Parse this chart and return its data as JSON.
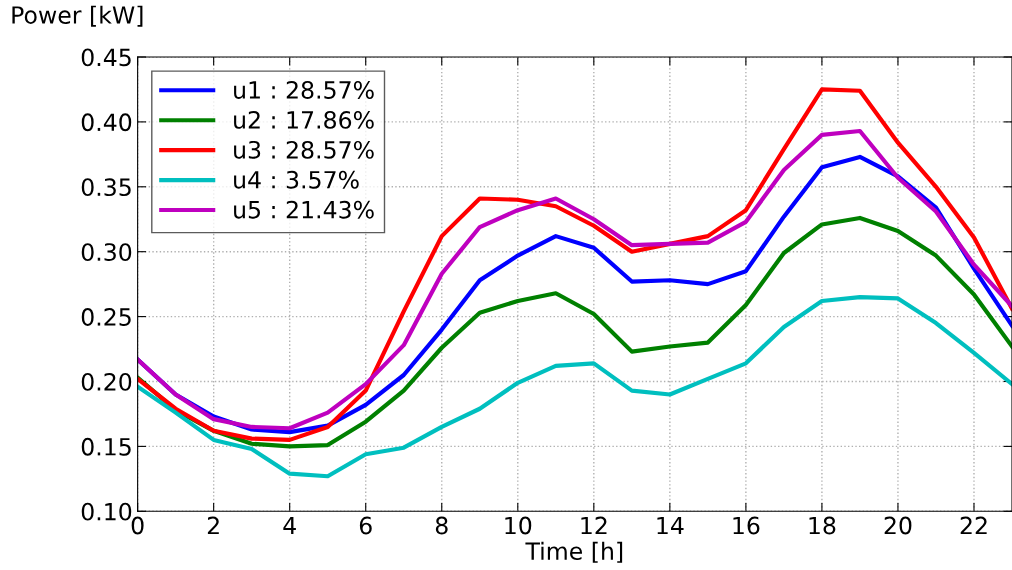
{
  "chart_data": {
    "type": "line",
    "xlabel": "Time [h]",
    "ylabel": "Power [kW]",
    "x": [
      0,
      1,
      2,
      3,
      4,
      5,
      6,
      7,
      8,
      9,
      10,
      11,
      12,
      13,
      14,
      15,
      16,
      17,
      18,
      19,
      20,
      21,
      22,
      23
    ],
    "xlim": [
      0,
      23
    ],
    "xticks": [
      0,
      2,
      4,
      6,
      8,
      10,
      12,
      14,
      16,
      18,
      20,
      22
    ],
    "ylim": [
      0.1,
      0.45
    ],
    "yticks": [
      {
        "value": 0.1,
        "label": "0.10"
      },
      {
        "value": 0.15,
        "label": "0.15"
      },
      {
        "value": 0.2,
        "label": "0.20"
      },
      {
        "value": 0.25,
        "label": "0.25"
      },
      {
        "value": 0.3,
        "label": "0.30"
      },
      {
        "value": 0.35,
        "label": "0.35"
      },
      {
        "value": 0.4,
        "label": "0.40"
      },
      {
        "value": 0.45,
        "label": "0.45"
      }
    ],
    "grid": true,
    "legend": "top left",
    "marker": "none",
    "line_style": "solid",
    "series": [
      {
        "name": "u1 : 28.57%",
        "color": "#0000ff",
        "values": [
          0.217,
          0.19,
          0.173,
          0.163,
          0.161,
          0.166,
          0.182,
          0.205,
          0.24,
          0.278,
          0.297,
          0.312,
          0.303,
          0.277,
          0.278,
          0.275,
          0.285,
          0.327,
          0.365,
          0.373,
          0.358,
          0.334,
          0.287,
          0.243
        ]
      },
      {
        "name": "u2 : 17.86%",
        "color": "#008000",
        "values": [
          0.203,
          0.178,
          0.162,
          0.152,
          0.15,
          0.151,
          0.169,
          0.193,
          0.226,
          0.253,
          0.262,
          0.268,
          0.252,
          0.223,
          0.227,
          0.23,
          0.259,
          0.299,
          0.321,
          0.326,
          0.316,
          0.297,
          0.267,
          0.227
        ]
      },
      {
        "name": "u3 : 28.57%",
        "color": "#ff0000",
        "values": [
          0.202,
          0.179,
          0.162,
          0.156,
          0.155,
          0.165,
          0.193,
          0.254,
          0.312,
          0.341,
          0.34,
          0.335,
          0.32,
          0.3,
          0.306,
          0.312,
          0.332,
          0.379,
          0.425,
          0.424,
          0.384,
          0.35,
          0.311,
          0.256
        ]
      },
      {
        "name": "u4 : 3.57%",
        "color": "#00bfbf",
        "values": [
          0.196,
          0.176,
          0.155,
          0.148,
          0.129,
          0.127,
          0.144,
          0.149,
          0.165,
          0.179,
          0.199,
          0.212,
          0.214,
          0.193,
          0.19,
          0.202,
          0.214,
          0.242,
          0.262,
          0.265,
          0.264,
          0.245,
          0.222,
          0.198
        ]
      },
      {
        "name": "u5 : 21.43%",
        "color": "#bf00bf",
        "values": [
          0.217,
          0.19,
          0.171,
          0.165,
          0.164,
          0.176,
          0.198,
          0.228,
          0.283,
          0.319,
          0.332,
          0.341,
          0.325,
          0.305,
          0.306,
          0.307,
          0.323,
          0.363,
          0.39,
          0.393,
          0.357,
          0.331,
          0.29,
          0.258
        ]
      }
    ]
  }
}
